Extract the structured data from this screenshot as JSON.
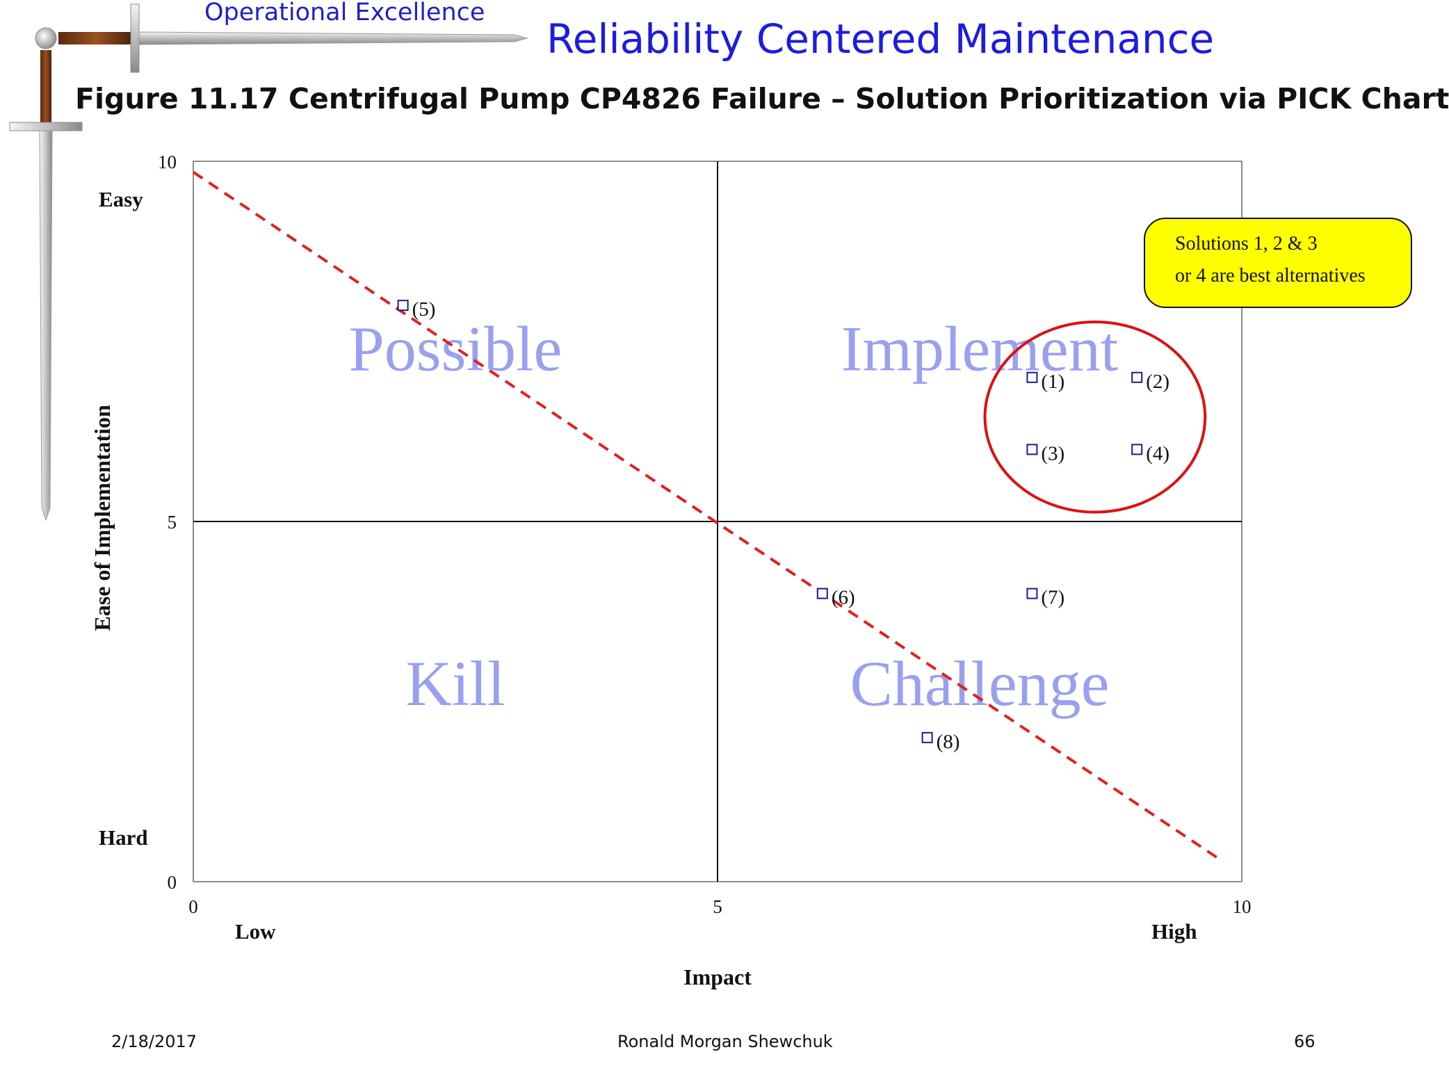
{
  "header": {
    "brand": "Operational Excellence",
    "title": "Reliability Centered Maintenance",
    "figure_title": "Figure 11.17  Centrifugal Pump CP4826 Failure – Solution Prioritization via PICK Chart"
  },
  "chart_data": {
    "type": "scatter",
    "xlabel": "Impact",
    "ylabel": "Ease of Implementation",
    "xlim": [
      0,
      10
    ],
    "ylim": [
      0,
      10
    ],
    "x_ticks": [
      0,
      5,
      10
    ],
    "y_ticks": [
      0,
      5,
      10
    ],
    "x_end_labels": {
      "low": "Low",
      "high": "High"
    },
    "y_end_labels": {
      "high": "Easy",
      "low": "Hard"
    },
    "quadrant_divider": {
      "x": 5,
      "y": 5
    },
    "quadrants": [
      {
        "label": "Possible",
        "position": "top-left"
      },
      {
        "label": "Implement",
        "position": "top-right"
      },
      {
        "label": "Kill",
        "position": "bottom-left"
      },
      {
        "label": "Challenge",
        "position": "bottom-right"
      }
    ],
    "points": [
      {
        "label": "(1)",
        "x": 8,
        "y": 7
      },
      {
        "label": "(2)",
        "x": 9,
        "y": 7
      },
      {
        "label": "(3)",
        "x": 8,
        "y": 6
      },
      {
        "label": "(4)",
        "x": 9,
        "y": 6
      },
      {
        "label": "(5)",
        "x": 2,
        "y": 8
      },
      {
        "label": "(6)",
        "x": 6,
        "y": 4
      },
      {
        "label": "(7)",
        "x": 8,
        "y": 4
      },
      {
        "label": "(8)",
        "x": 7,
        "y": 2
      }
    ],
    "diagonal_line": {
      "style": "dashed",
      "color": "#e02020",
      "from": [
        0,
        9.85
      ],
      "to": [
        9.8,
        0.3
      ]
    },
    "highlight_ellipse": {
      "color": "#dd1111",
      "center": [
        8.6,
        6.45
      ],
      "rx": 1.05,
      "ry": 1.32
    },
    "callout": {
      "lines": [
        "Solutions 1, 2 & 3",
        "or 4 are best alternatives"
      ],
      "fill": "#ffff00"
    },
    "marker_color": "#1a1a8c",
    "quadrant_label_color": "#9aa0f0",
    "grid": false,
    "legend": "none"
  },
  "footer": {
    "date": "2/18/2017",
    "author": "Ronald Morgan Shewchuk",
    "page": "66"
  }
}
